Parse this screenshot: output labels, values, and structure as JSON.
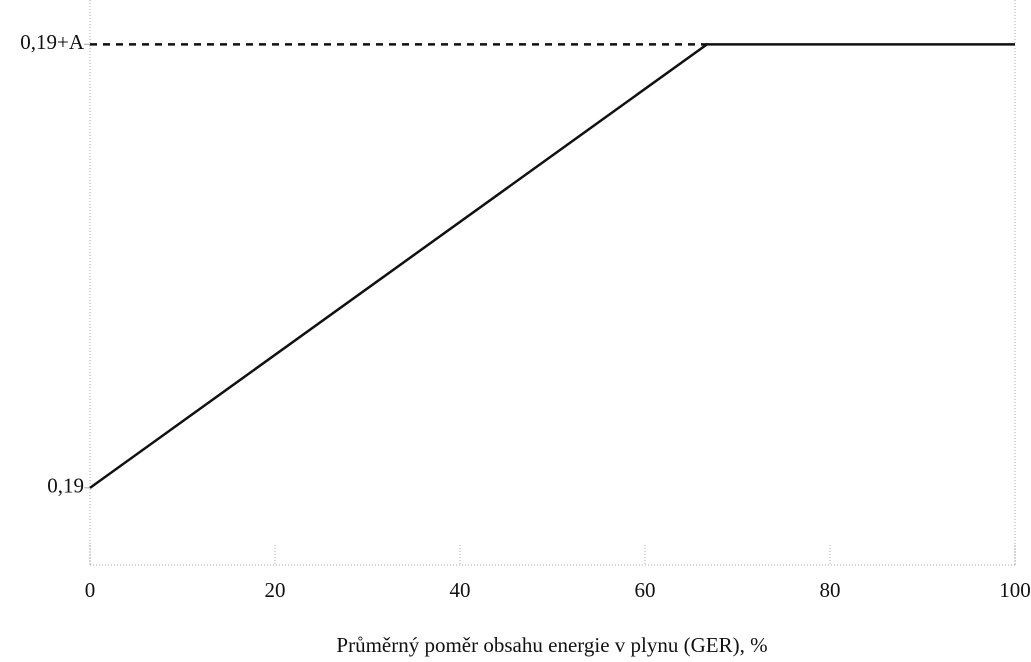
{
  "chart_data": {
    "type": "line",
    "xlabel": "Průměrný poměr obsahu energie v plynu (GER), %",
    "xlim": [
      0,
      100
    ],
    "xticks": [
      0,
      20,
      40,
      60,
      80,
      100
    ],
    "ylim": [
      0.016,
      1.29
    ],
    "yticks": [
      {
        "value": 0.19,
        "label": "0,19"
      },
      {
        "value": 1.19,
        "label": "0,19+A"
      }
    ],
    "series": [
      {
        "color": "#111111",
        "style": "solid",
        "x": [
          0,
          66.7,
          100
        ],
        "values": [
          0.19,
          1.19,
          1.19
        ]
      },
      {
        "color": "#111111",
        "style": "dashed",
        "x": [
          0,
          66.7
        ],
        "values": [
          1.19,
          1.19
        ]
      }
    ]
  }
}
